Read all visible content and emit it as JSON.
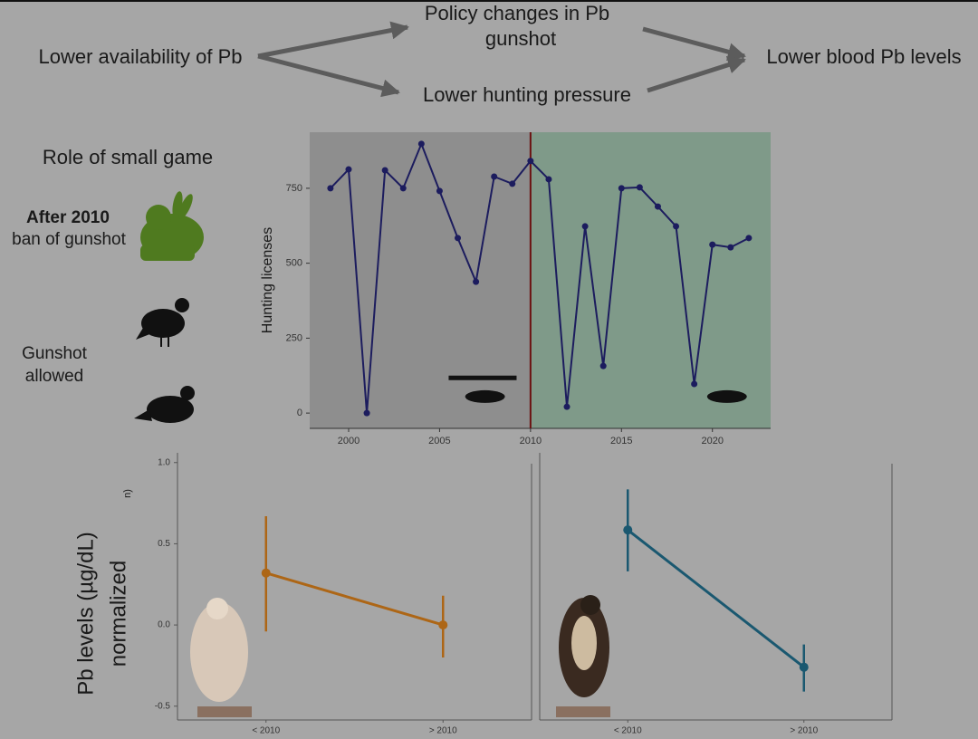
{
  "diagram": {
    "nodes": [
      {
        "lines": [
          "Lower availability of Pb"
        ]
      },
      {
        "lines": [
          "Policy changes in Pb",
          "gunshot"
        ]
      },
      {
        "lines": [
          "Lower hunting pressure"
        ]
      },
      {
        "lines": [
          "Lower blood Pb levels"
        ]
      }
    ],
    "side_labels": {
      "heading": "Role of small game",
      "after": "After 2010",
      "after_note": "ban of gunshot",
      "allowed": [
        "Gunshot",
        "allowed"
      ]
    }
  },
  "chart_data": [
    {
      "type": "line",
      "ylabel": "Hunting licenses",
      "x": [
        1999,
        2000,
        2001,
        2002,
        2003,
        2004,
        2005,
        2006,
        2007,
        2008,
        2009,
        2010,
        2011,
        2012,
        2013,
        2014,
        2015,
        2016,
        2017,
        2018,
        2019,
        2020,
        2021,
        2022
      ],
      "series": [
        {
          "color": "#1c1c5e",
          "values": [
            750,
            813,
            0,
            810,
            750,
            898,
            741,
            584,
            438,
            789,
            765,
            841,
            780,
            21,
            623,
            157,
            750,
            753,
            689,
            623,
            97,
            562,
            553,
            584
          ]
        }
      ],
      "xlim": [
        1997.86,
        2023.2
      ],
      "ylim": [
        -51,
        937
      ],
      "xticks": [
        2000,
        2005,
        2010,
        2015,
        2020
      ],
      "yticks": [
        0,
        250,
        500,
        750
      ],
      "divider": {
        "x": 2010,
        "color": "#6b1010"
      },
      "background_colors": [
        "#8e8e8e",
        "#7f9a89"
      ]
    },
    {
      "type": "pointrange",
      "ylabel": "Pb levels (µg/dL)",
      "ylabel2": "normalized",
      "fragment": "n)",
      "categories": [
        "< 2010",
        "> 2010"
      ],
      "series": [
        {
          "color": "#ad6616",
          "values": [
            0.32,
            0.0
          ],
          "lower": [
            -0.04,
            -0.2
          ],
          "upper": [
            0.67,
            0.18
          ]
        }
      ],
      "ylim": [
        -0.585,
        1.06
      ],
      "yticks": [
        {
          "value": 1,
          "label": "1.0"
        },
        {
          "value": 0.5,
          "label": "0.5"
        },
        {
          "value": 0,
          "label": "0.0"
        },
        {
          "value": -0.5,
          "label": "-0.5"
        }
      ]
    },
    {
      "type": "pointrange",
      "categories": [
        "< 2010",
        "> 2010"
      ],
      "series": [
        {
          "color": "#1a5870",
          "values": [
            0.585,
            -0.26
          ],
          "lower": [
            0.33,
            -0.41
          ],
          "upper": [
            0.835,
            -0.12
          ]
        }
      ],
      "ylim": [
        -0.585,
        1.06
      ]
    }
  ]
}
